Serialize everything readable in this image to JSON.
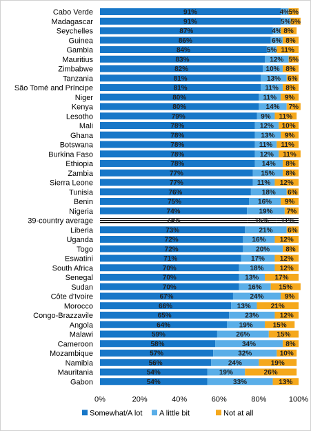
{
  "chart_data": {
    "type": "bar",
    "orientation": "horizontal",
    "stacked": true,
    "categories": [
      "Cabo Verde",
      "Madagascar",
      "Seychelles",
      "Guinea",
      "Gambia",
      "Mauritius",
      "Zimbabwe",
      "Tanzania",
      "São Tomé and Príncipe",
      "Niger",
      "Kenya",
      "Lesotho",
      "Mali",
      "Ghana",
      "Botswana",
      "Burkina Faso",
      "Ethiopia",
      "Zambia",
      "Sierra Leone",
      "Tunisia",
      "Benin",
      "Nigeria",
      "39-country average",
      "Liberia",
      "Uganda",
      "Togo",
      "Eswatini",
      "South Africa",
      "Senegal",
      "Sudan",
      "Côte d'Ivoire",
      "Morocco",
      "Congo-Brazzavile",
      "Angola",
      "Malawi",
      "Cameroon",
      "Mozambique",
      "Namibia",
      "Mauritania",
      "Gabon"
    ],
    "highlight_category": "39-country average",
    "series": [
      {
        "name": "Somewhat/A lot",
        "color": "#1777c8",
        "values": [
          91,
          91,
          87,
          86,
          84,
          83,
          82,
          81,
          81,
          80,
          80,
          79,
          78,
          78,
          78,
          78,
          78,
          77,
          77,
          76,
          75,
          74,
          74,
          73,
          72,
          72,
          71,
          70,
          70,
          70,
          67,
          66,
          65,
          64,
          59,
          58,
          57,
          56,
          54,
          54
        ]
      },
      {
        "name": "A little bit",
        "color": "#5aaee8",
        "values": [
          4,
          5,
          4,
          6,
          5,
          12,
          10,
          13,
          11,
          11,
          14,
          9,
          12,
          13,
          11,
          12,
          14,
          15,
          11,
          18,
          16,
          19,
          15,
          21,
          16,
          20,
          17,
          18,
          13,
          16,
          24,
          13,
          23,
          19,
          26,
          34,
          32,
          24,
          19,
          33
        ]
      },
      {
        "name": "Not at all",
        "color": "#f5a81c",
        "values": [
          5,
          5,
          8,
          8,
          11,
          5,
          8,
          6,
          8,
          9,
          7,
          11,
          10,
          9,
          11,
          11,
          8,
          8,
          12,
          6,
          9,
          7,
          11,
          6,
          12,
          8,
          12,
          12,
          17,
          15,
          9,
          21,
          12,
          15,
          15,
          8,
          10,
          19,
          26,
          13
        ]
      }
    ],
    "xlim": [
      0,
      100
    ],
    "x_ticks": [
      "0%",
      "20%",
      "40%",
      "60%",
      "80%",
      "100%"
    ],
    "value_suffix": "%",
    "legend_position": "bottom"
  }
}
